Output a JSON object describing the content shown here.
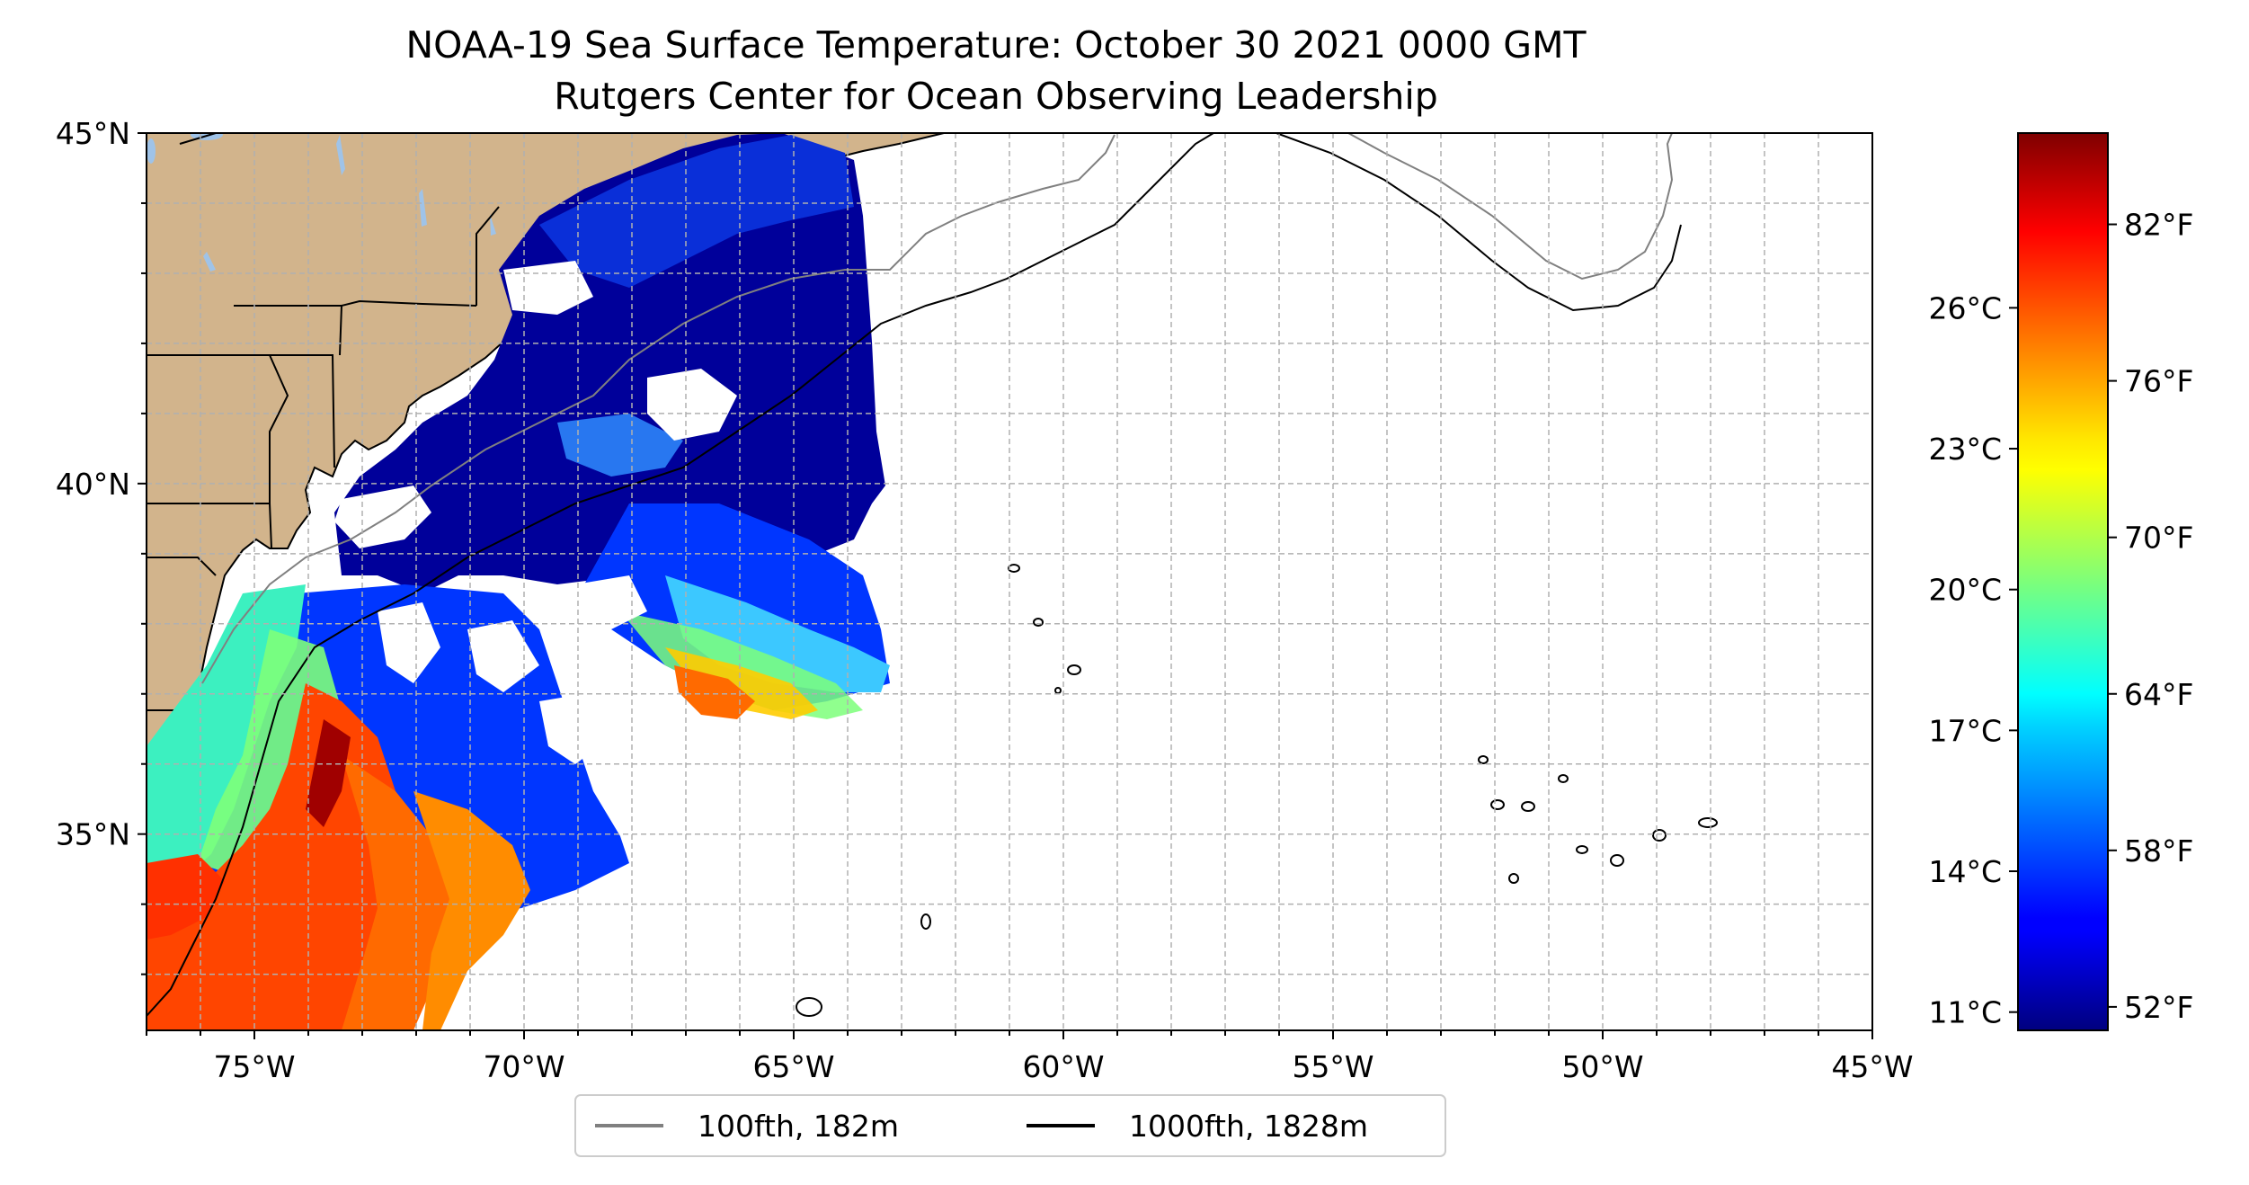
{
  "title_line1": "NOAA-19 Sea Surface Temperature: October 30 2021 0000 GMT",
  "title_line2": "Rutgers Center for Ocean Observing Leadership",
  "map": {
    "lon_range": [
      -77,
      -45
    ],
    "lat_range": [
      32.2,
      45
    ],
    "x_ticks": [
      {
        "lon": -75,
        "label": "75°W"
      },
      {
        "lon": -70,
        "label": "70°W"
      },
      {
        "lon": -65,
        "label": "65°W"
      },
      {
        "lon": -60,
        "label": "60°W"
      },
      {
        "lon": -55,
        "label": "55°W"
      },
      {
        "lon": -50,
        "label": "50°W"
      },
      {
        "lon": -45,
        "label": "45°W"
      }
    ],
    "y_ticks": [
      {
        "lat": 45,
        "label": "45°N"
      },
      {
        "lat": 40,
        "label": "40°N"
      },
      {
        "lat": 35,
        "label": "35°N"
      }
    ],
    "grid": "dashed, every 1°",
    "colors": {
      "land": "#d2b48c",
      "lakes": "#9fc3e8",
      "contour_100fth": "#808080",
      "contour_1000fth": "#000000",
      "grid": "#b0b0b0"
    }
  },
  "legend": [
    {
      "label": "100fth, 182m",
      "color": "#808080"
    },
    {
      "label": "1000fth, 1828m",
      "color": "#000000"
    }
  ],
  "colorbar": {
    "colormap": "jet",
    "range_f": [
      51.1,
      85.5
    ],
    "fahrenheit_ticks": [
      {
        "value": 52,
        "label": "52°F"
      },
      {
        "value": 58,
        "label": "58°F"
      },
      {
        "value": 64,
        "label": "64°F"
      },
      {
        "value": 70,
        "label": "70°F"
      },
      {
        "value": 76,
        "label": "76°F"
      },
      {
        "value": 82,
        "label": "82°F"
      }
    ],
    "celsius_ticks": [
      {
        "value": 11,
        "label": "11°C"
      },
      {
        "value": 14,
        "label": "14°C"
      },
      {
        "value": 17,
        "label": "17°C"
      },
      {
        "value": 20,
        "label": "20°C"
      },
      {
        "value": 23,
        "label": "23°C"
      },
      {
        "value": 26,
        "label": "26°C"
      }
    ]
  }
}
